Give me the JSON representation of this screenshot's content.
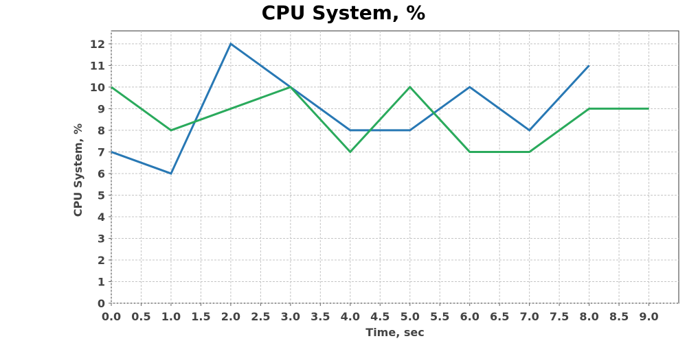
{
  "chart_data": {
    "type": "line",
    "title": "CPU System, %",
    "xlabel": "Time, sec",
    "ylabel": "CPU System, %",
    "xlim": [
      0,
      9.5
    ],
    "ylim": [
      0,
      12.6
    ],
    "grid": true,
    "x_ticks": [
      "0.0",
      "0.5",
      "1.0",
      "1.5",
      "2.0",
      "2.5",
      "3.0",
      "3.5",
      "4.0",
      "4.5",
      "5.0",
      "5.5",
      "6.0",
      "6.5",
      "7.0",
      "7.5",
      "8.0",
      "8.5",
      "9.0"
    ],
    "y_ticks": [
      "0",
      "1",
      "2",
      "3",
      "4",
      "5",
      "6",
      "7",
      "8",
      "9",
      "10",
      "11",
      "12"
    ],
    "series": [
      {
        "color": "#2878b4",
        "x": [
          0,
          1,
          2,
          3,
          4,
          5,
          6,
          7,
          8
        ],
        "values": [
          7,
          6,
          12,
          10,
          8,
          8,
          10,
          8,
          11
        ]
      },
      {
        "color": "#2aaa5c",
        "x": [
          0,
          1,
          2,
          3,
          4,
          5,
          6,
          7,
          8,
          9
        ],
        "values": [
          10,
          8,
          9,
          10,
          7,
          10,
          7,
          7,
          9,
          9
        ]
      }
    ]
  }
}
